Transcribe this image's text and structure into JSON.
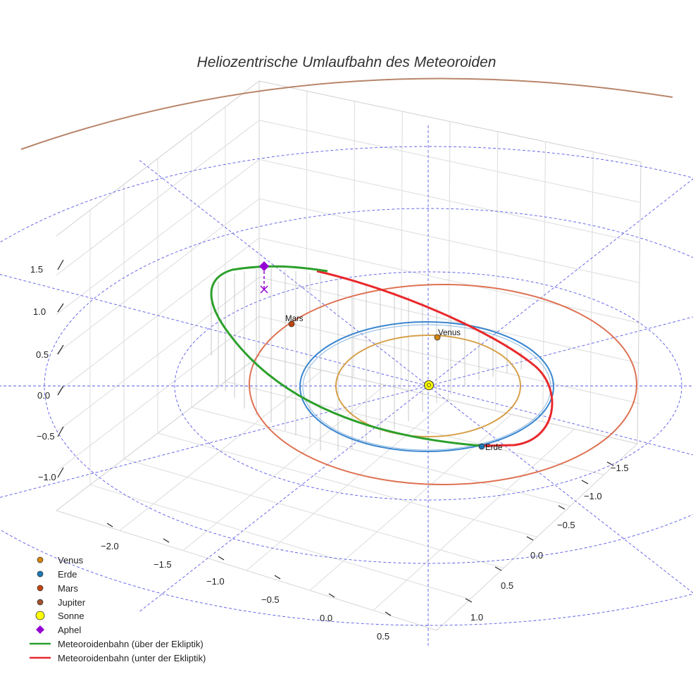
{
  "chart_data": {
    "type": "3d-orbit",
    "title": "Heliozentrische Umlaufbahn des Meteoroiden",
    "axes": {
      "x_ticks": [
        "−2.0",
        "−1.5",
        "−1.0",
        "−0.5",
        "0.0",
        "0.5"
      ],
      "y_ticks": [
        "−1.5",
        "−1.0",
        "−0.5",
        "0.0",
        "0.5",
        "1.0"
      ],
      "z_ticks": [
        "1.5",
        "1.0",
        "0.5",
        "0.0",
        "−0.5",
        "−1.0"
      ],
      "x_range": [
        -2.2,
        0.6
      ],
      "y_range": [
        -1.7,
        1.1
      ],
      "z_range": [
        -1.2,
        1.7
      ]
    },
    "bodies": [
      {
        "name": "Venus",
        "label": "Venus",
        "color": "#d4860e",
        "orbit_color": "#d6a04a",
        "orbit_radius_au": 0.72
      },
      {
        "name": "Erde",
        "label": "Erde",
        "color": "#1f77b4",
        "orbit_color": "#3a86cf",
        "orbit_radius_au": 1.0
      },
      {
        "name": "Mars",
        "label": "Mars",
        "color": "#c1440e",
        "orbit_color": "#de7253",
        "orbit_radius_au": 1.52
      },
      {
        "name": "Jupiter",
        "label": "",
        "color": "#a0522d",
        "orbit_color": "#b8856b",
        "orbit_radius_au": 5.2
      }
    ],
    "sun": {
      "name": "Sonne",
      "color": "#ffff00"
    },
    "aphel": {
      "name": "Aphel",
      "color": "#9400d3"
    },
    "meteoroid_orbit": [
      {
        "name": "Meteoroidenbahn (über der Ekliptik)",
        "color": "#2ca02c"
      },
      {
        "name": "Meteoroidenbahn (unter der Ekliptik)",
        "color": "#e8292c"
      }
    ],
    "legend": [
      {
        "label": "Venus",
        "marker": "dot",
        "color": "#d4860e"
      },
      {
        "label": "Erde",
        "marker": "dot",
        "color": "#1f77b4"
      },
      {
        "label": "Mars",
        "marker": "dot",
        "color": "#c1440e"
      },
      {
        "label": "Jupiter",
        "marker": "dot",
        "color": "#a0522d"
      },
      {
        "label": "Sonne",
        "marker": "sun",
        "color": "#ffff00"
      },
      {
        "label": "Aphel",
        "marker": "diamond",
        "color": "#9400d3"
      },
      {
        "label": "Meteoroidenbahn (über der Ekliptik)",
        "marker": "line",
        "color": "#2ca02c"
      },
      {
        "label": "Meteoroidenbahn (unter der Ekliptik)",
        "marker": "line",
        "color": "#e8292c"
      }
    ],
    "legend_position": "bottom-left"
  }
}
